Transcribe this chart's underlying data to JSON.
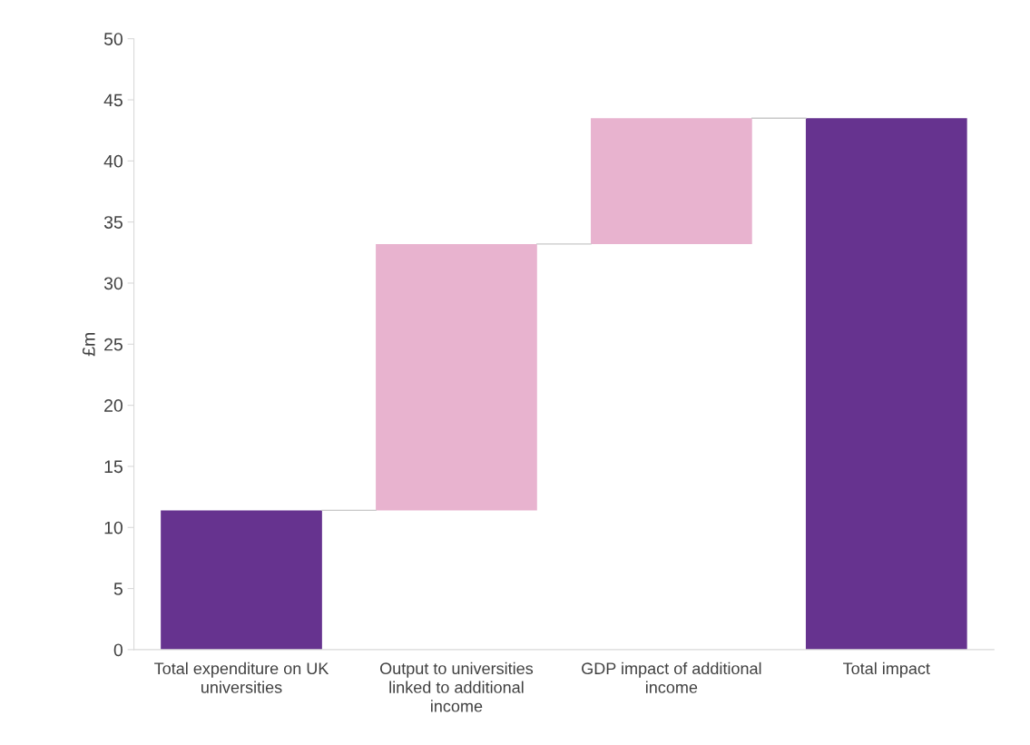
{
  "chart_data": {
    "type": "bar",
    "ylabel": "£m",
    "categories": [
      "Total expenditure on UK universities",
      "Output to universities linked to additional income",
      "GDP impact of additional income",
      "Total impact"
    ],
    "values": [
      11.4,
      21.8,
      10.3,
      43.5
    ],
    "base": [
      0,
      11.4,
      33.2,
      0
    ],
    "colors": [
      "#66338f",
      "#e8b3cf",
      "#e8b3cf",
      "#66338f"
    ],
    "ylim": [
      0,
      50
    ],
    "yticks": [
      0,
      5,
      10,
      15,
      20,
      25,
      30,
      35,
      40,
      45,
      50
    ],
    "grid": false,
    "legend": false
  }
}
